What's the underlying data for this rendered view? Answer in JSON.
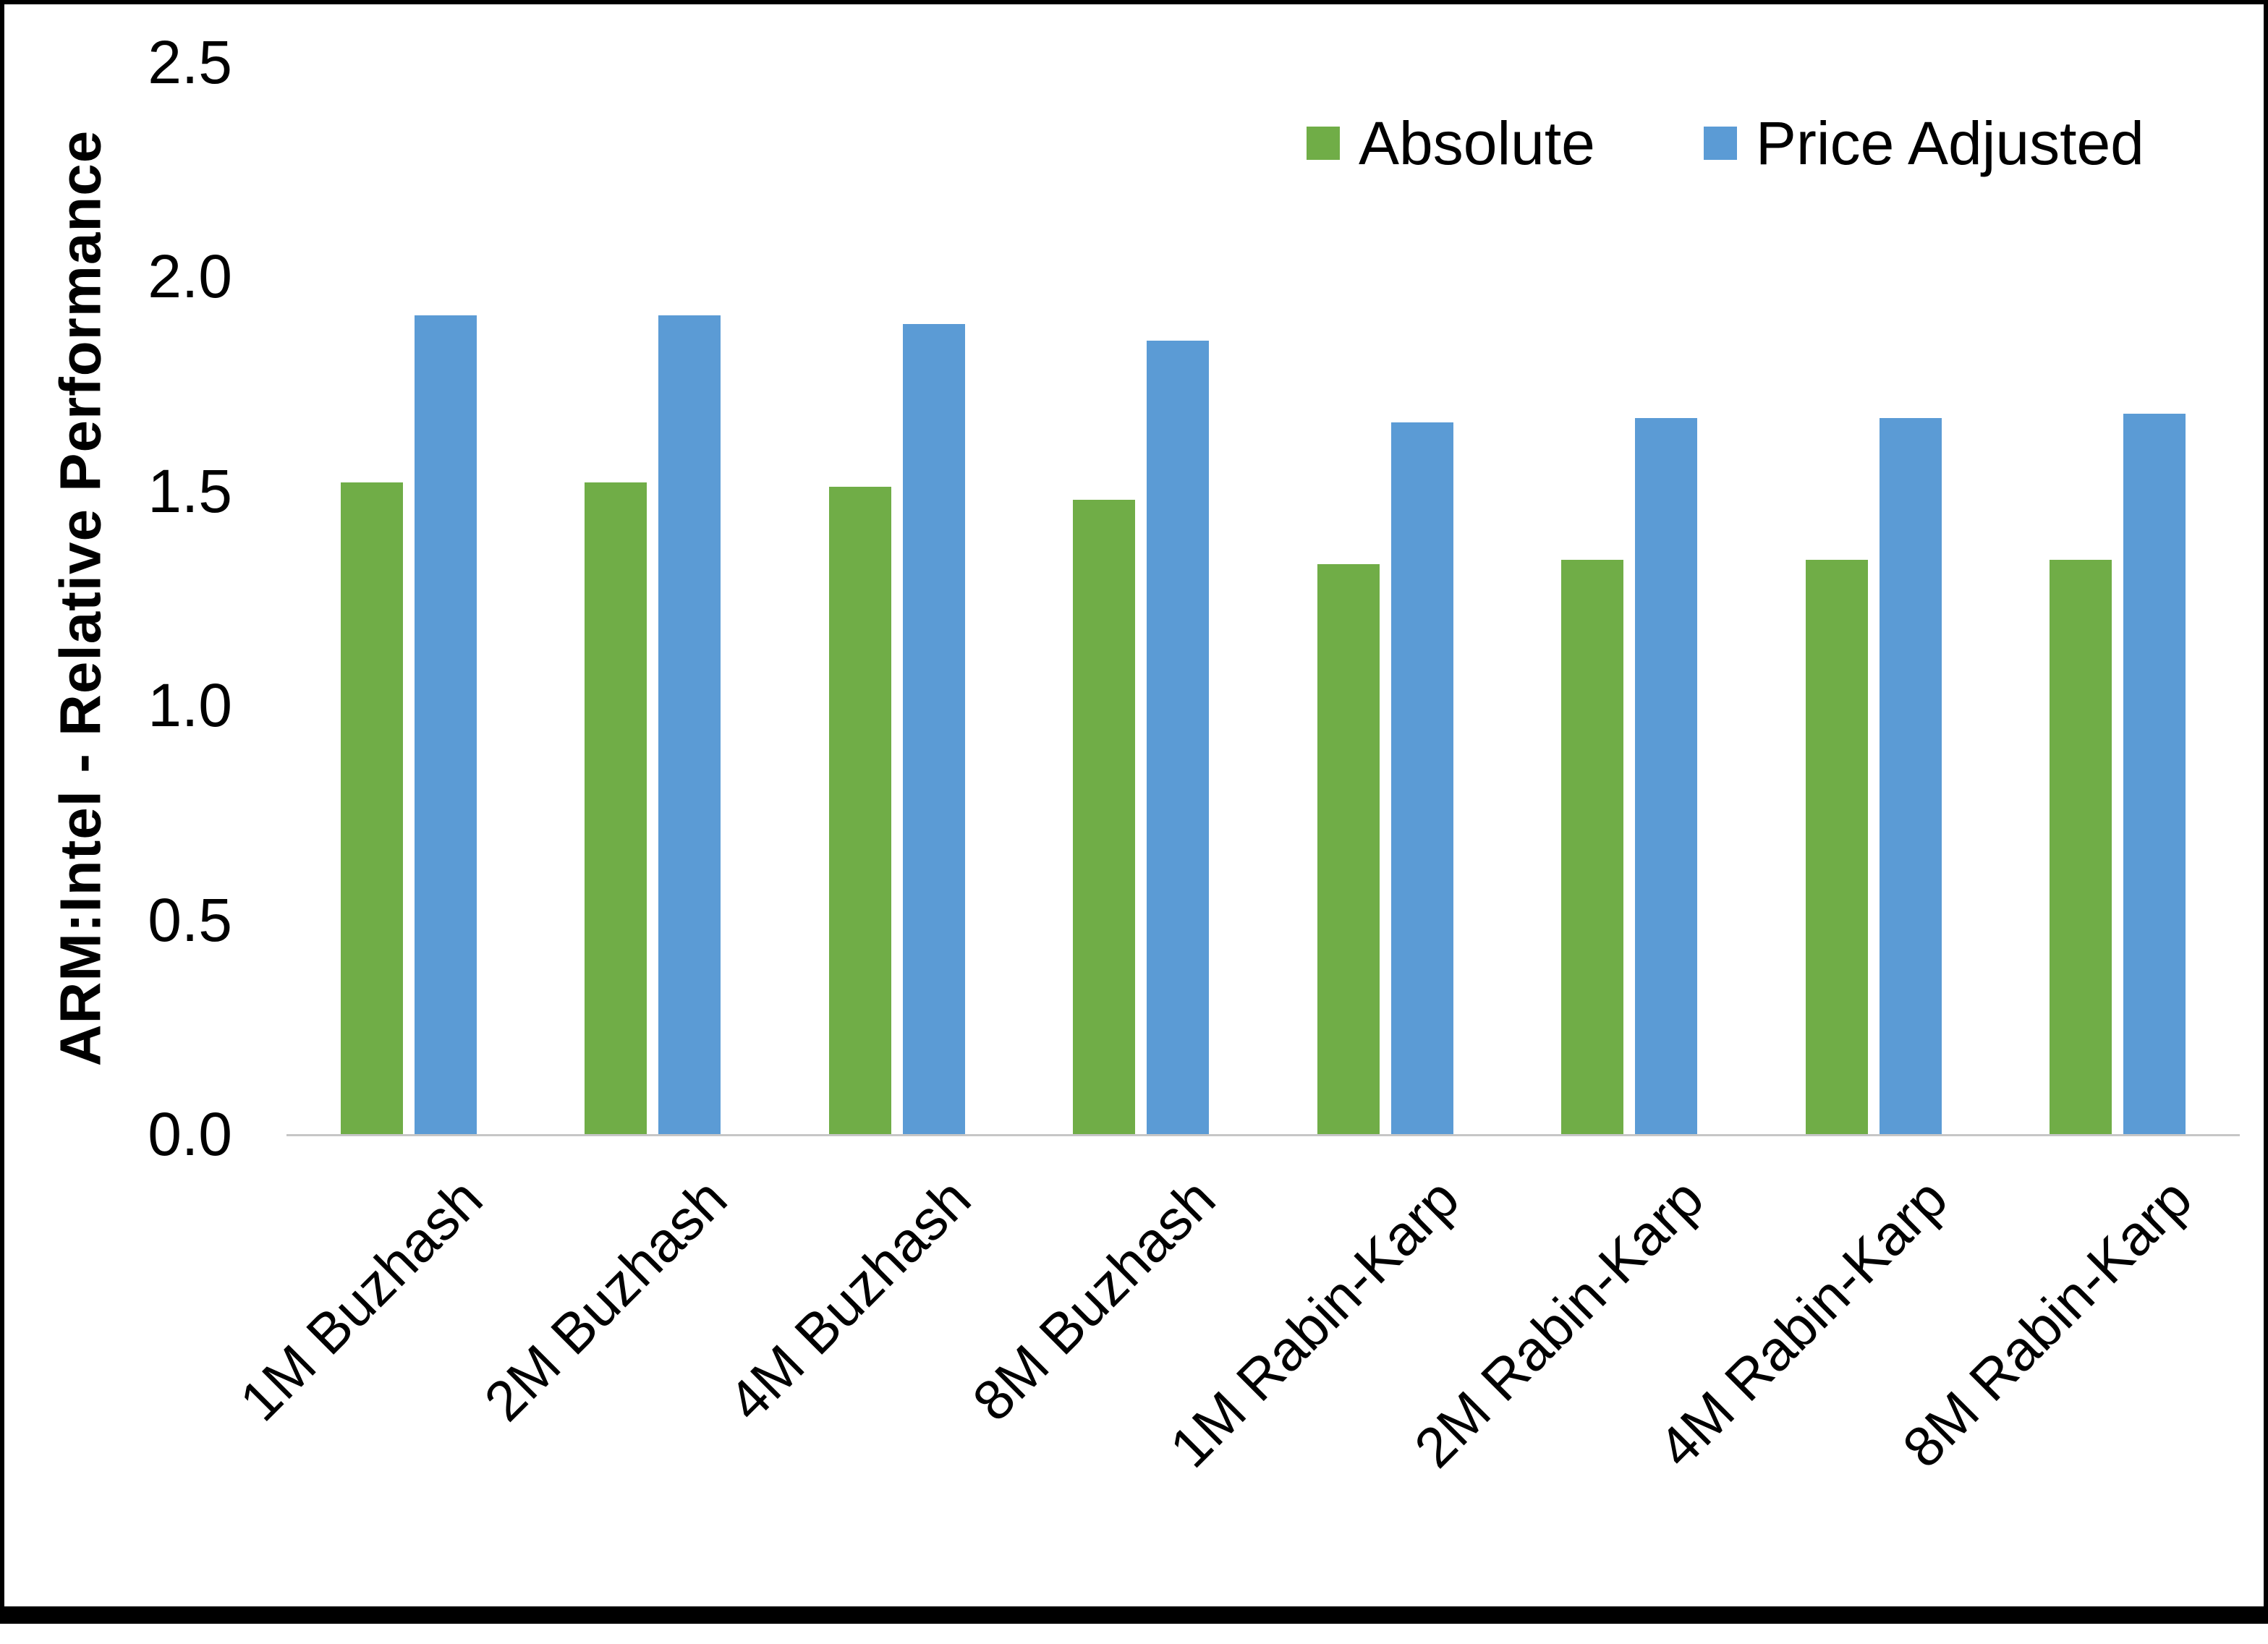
{
  "chart_data": {
    "type": "bar",
    "categories": [
      "1M Buzhash",
      "2M Buzhash",
      "4M Buzhash",
      "8M Buzhash",
      "1M Rabin-Karp",
      "2M Rabin-Karp",
      "4M Rabin-Karp",
      "8M Rabin-Karp"
    ],
    "series": [
      {
        "name": "Absolute",
        "color": "#70AD47",
        "values": [
          1.52,
          1.52,
          1.51,
          1.48,
          1.33,
          1.34,
          1.34,
          1.34
        ]
      },
      {
        "name": "Price Adjusted",
        "color": "#5B9BD5",
        "values": [
          1.91,
          1.91,
          1.89,
          1.85,
          1.66,
          1.67,
          1.67,
          1.68
        ]
      }
    ],
    "ylabel": "ARM:Intel - Relative Performance",
    "ylim": [
      0,
      2.5
    ],
    "ytick_labels": [
      "0.0",
      "0.5",
      "1.0",
      "1.5",
      "2.0",
      "2.5"
    ],
    "grid": false,
    "legend_position": "top-right",
    "axis_line_color": "#c6c6c6"
  }
}
